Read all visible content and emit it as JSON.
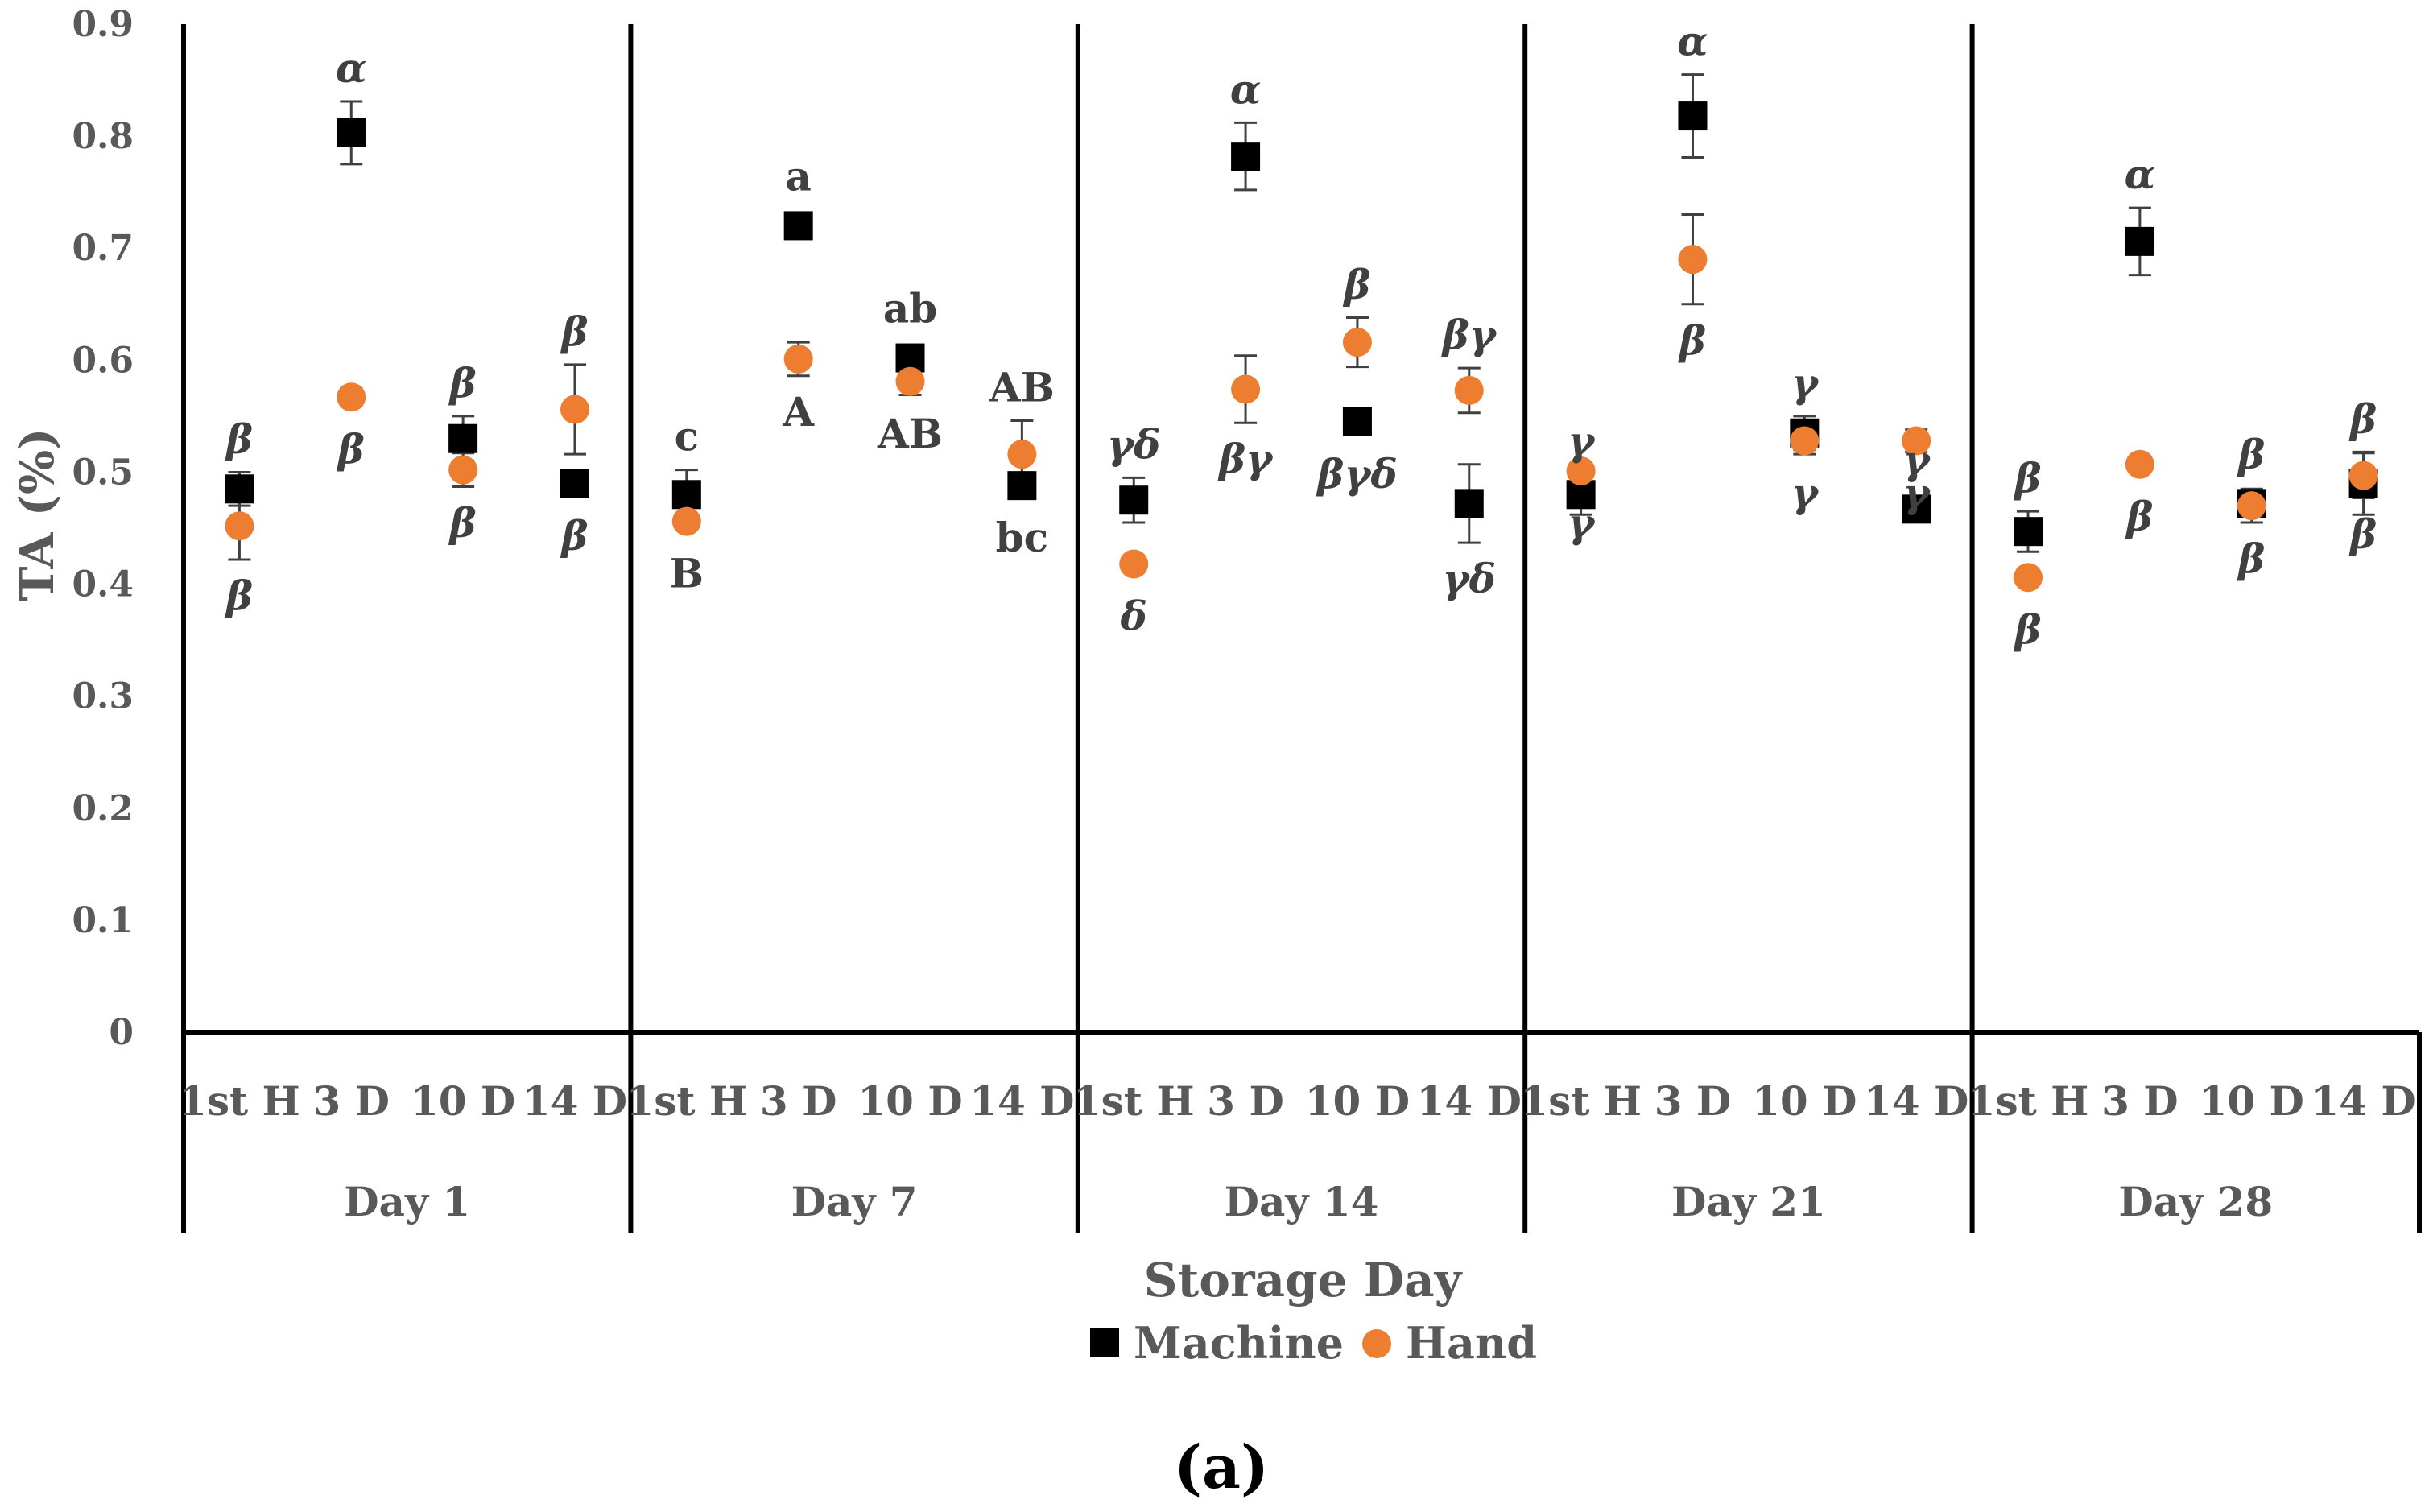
{
  "chart_data": {
    "type": "scatter",
    "panel_label": "(a)",
    "title": "",
    "xlabel": "Storage Day",
    "ylabel": "TA (%)",
    "ylim": [
      0,
      0.9
    ],
    "yticks": [
      "0",
      "0.1",
      "0.2",
      "0.3",
      "0.4",
      "0.5",
      "0.6",
      "0.7",
      "0.8",
      "0.9"
    ],
    "grid": false,
    "legend_position": "bottom-center",
    "groups": [
      "Day 1",
      "Day 7",
      "Day 14",
      "Day 21",
      "Day 28"
    ],
    "categories": [
      "1st H",
      "3 D",
      "10 D",
      "14 D"
    ],
    "colors": {
      "machine": "#000000",
      "hand": "#ED7D31",
      "axis": "#000000",
      "text": "#595959"
    },
    "series": [
      {
        "name": "Machine",
        "marker": "square",
        "values": [
          [
            0.485,
            0.803,
            0.53,
            0.49
          ],
          [
            0.48,
            0.72,
            0.602,
            0.488
          ],
          [
            0.475,
            0.782,
            0.545,
            0.472
          ],
          [
            0.48,
            0.818,
            0.535,
            0.467
          ],
          [
            0.447,
            0.706,
            0.472,
            0.49
          ]
        ],
        "errors": [
          [
            0.015,
            0.028,
            0.02,
            0.005
          ],
          [
            0.022,
            0.005,
            0.008,
            0.01
          ],
          [
            0.02,
            0.03,
            0.01,
            0.035
          ],
          [
            0.018,
            0.037,
            0.015,
            0.005
          ],
          [
            0.018,
            0.03,
            0.01,
            0.028
          ]
        ],
        "letters": [
          [
            "β",
            "α",
            "β",
            "β"
          ],
          [
            "c",
            "a",
            "ab",
            "bc"
          ],
          [
            "γδ",
            "α",
            "βγδ",
            "γδ"
          ],
          [
            "γ",
            "α",
            "γ",
            "γ"
          ],
          [
            "β",
            "α",
            "β",
            "β"
          ]
        ]
      },
      {
        "name": "Hand",
        "marker": "circle",
        "values": [
          [
            0.452,
            0.567,
            0.502,
            0.556
          ],
          [
            0.456,
            0.601,
            0.581,
            0.516
          ],
          [
            0.418,
            0.574,
            0.616,
            0.573
          ],
          [
            0.501,
            0.69,
            0.528,
            0.528
          ],
          [
            0.406,
            0.507,
            0.47,
            0.497
          ]
        ],
        "errors": [
          [
            0.03,
            0.008,
            0.015,
            0.04
          ],
          [
            0.005,
            0.015,
            0.012,
            0.03
          ],
          [
            0.005,
            0.03,
            0.022,
            0.02
          ],
          [
            0.005,
            0.04,
            0.012,
            0.01
          ],
          [
            0.005,
            0.005,
            0.015,
            0.02
          ]
        ],
        "letters": [
          [
            "β",
            "β",
            "β",
            "β"
          ],
          [
            "B",
            "A",
            "AB",
            "AB"
          ],
          [
            "δ",
            "βγ",
            "β",
            "βγ"
          ],
          [
            "γ",
            "β",
            "γ",
            "γ"
          ],
          [
            "β",
            "β",
            "β",
            "β"
          ]
        ]
      }
    ],
    "letter_placement": [
      [
        [
          "above",
          "below"
        ],
        [
          "above",
          "below"
        ],
        [
          "above",
          "below"
        ],
        [
          "below",
          "above"
        ]
      ],
      [
        [
          "above",
          "below"
        ],
        [
          "above",
          "below"
        ],
        [
          "above",
          "below"
        ],
        [
          "below",
          "above"
        ]
      ],
      [
        [
          "above",
          "below"
        ],
        [
          "above",
          "below"
        ],
        [
          "below",
          "above"
        ],
        [
          "below",
          "above"
        ]
      ],
      [
        [
          "above",
          "below"
        ],
        [
          "above",
          "below"
        ],
        [
          "above",
          "below"
        ],
        [
          "above",
          "below"
        ]
      ],
      [
        [
          "above",
          "below"
        ],
        [
          "above",
          "below"
        ],
        [
          "above",
          "below"
        ],
        [
          "above",
          "below"
        ]
      ]
    ]
  }
}
